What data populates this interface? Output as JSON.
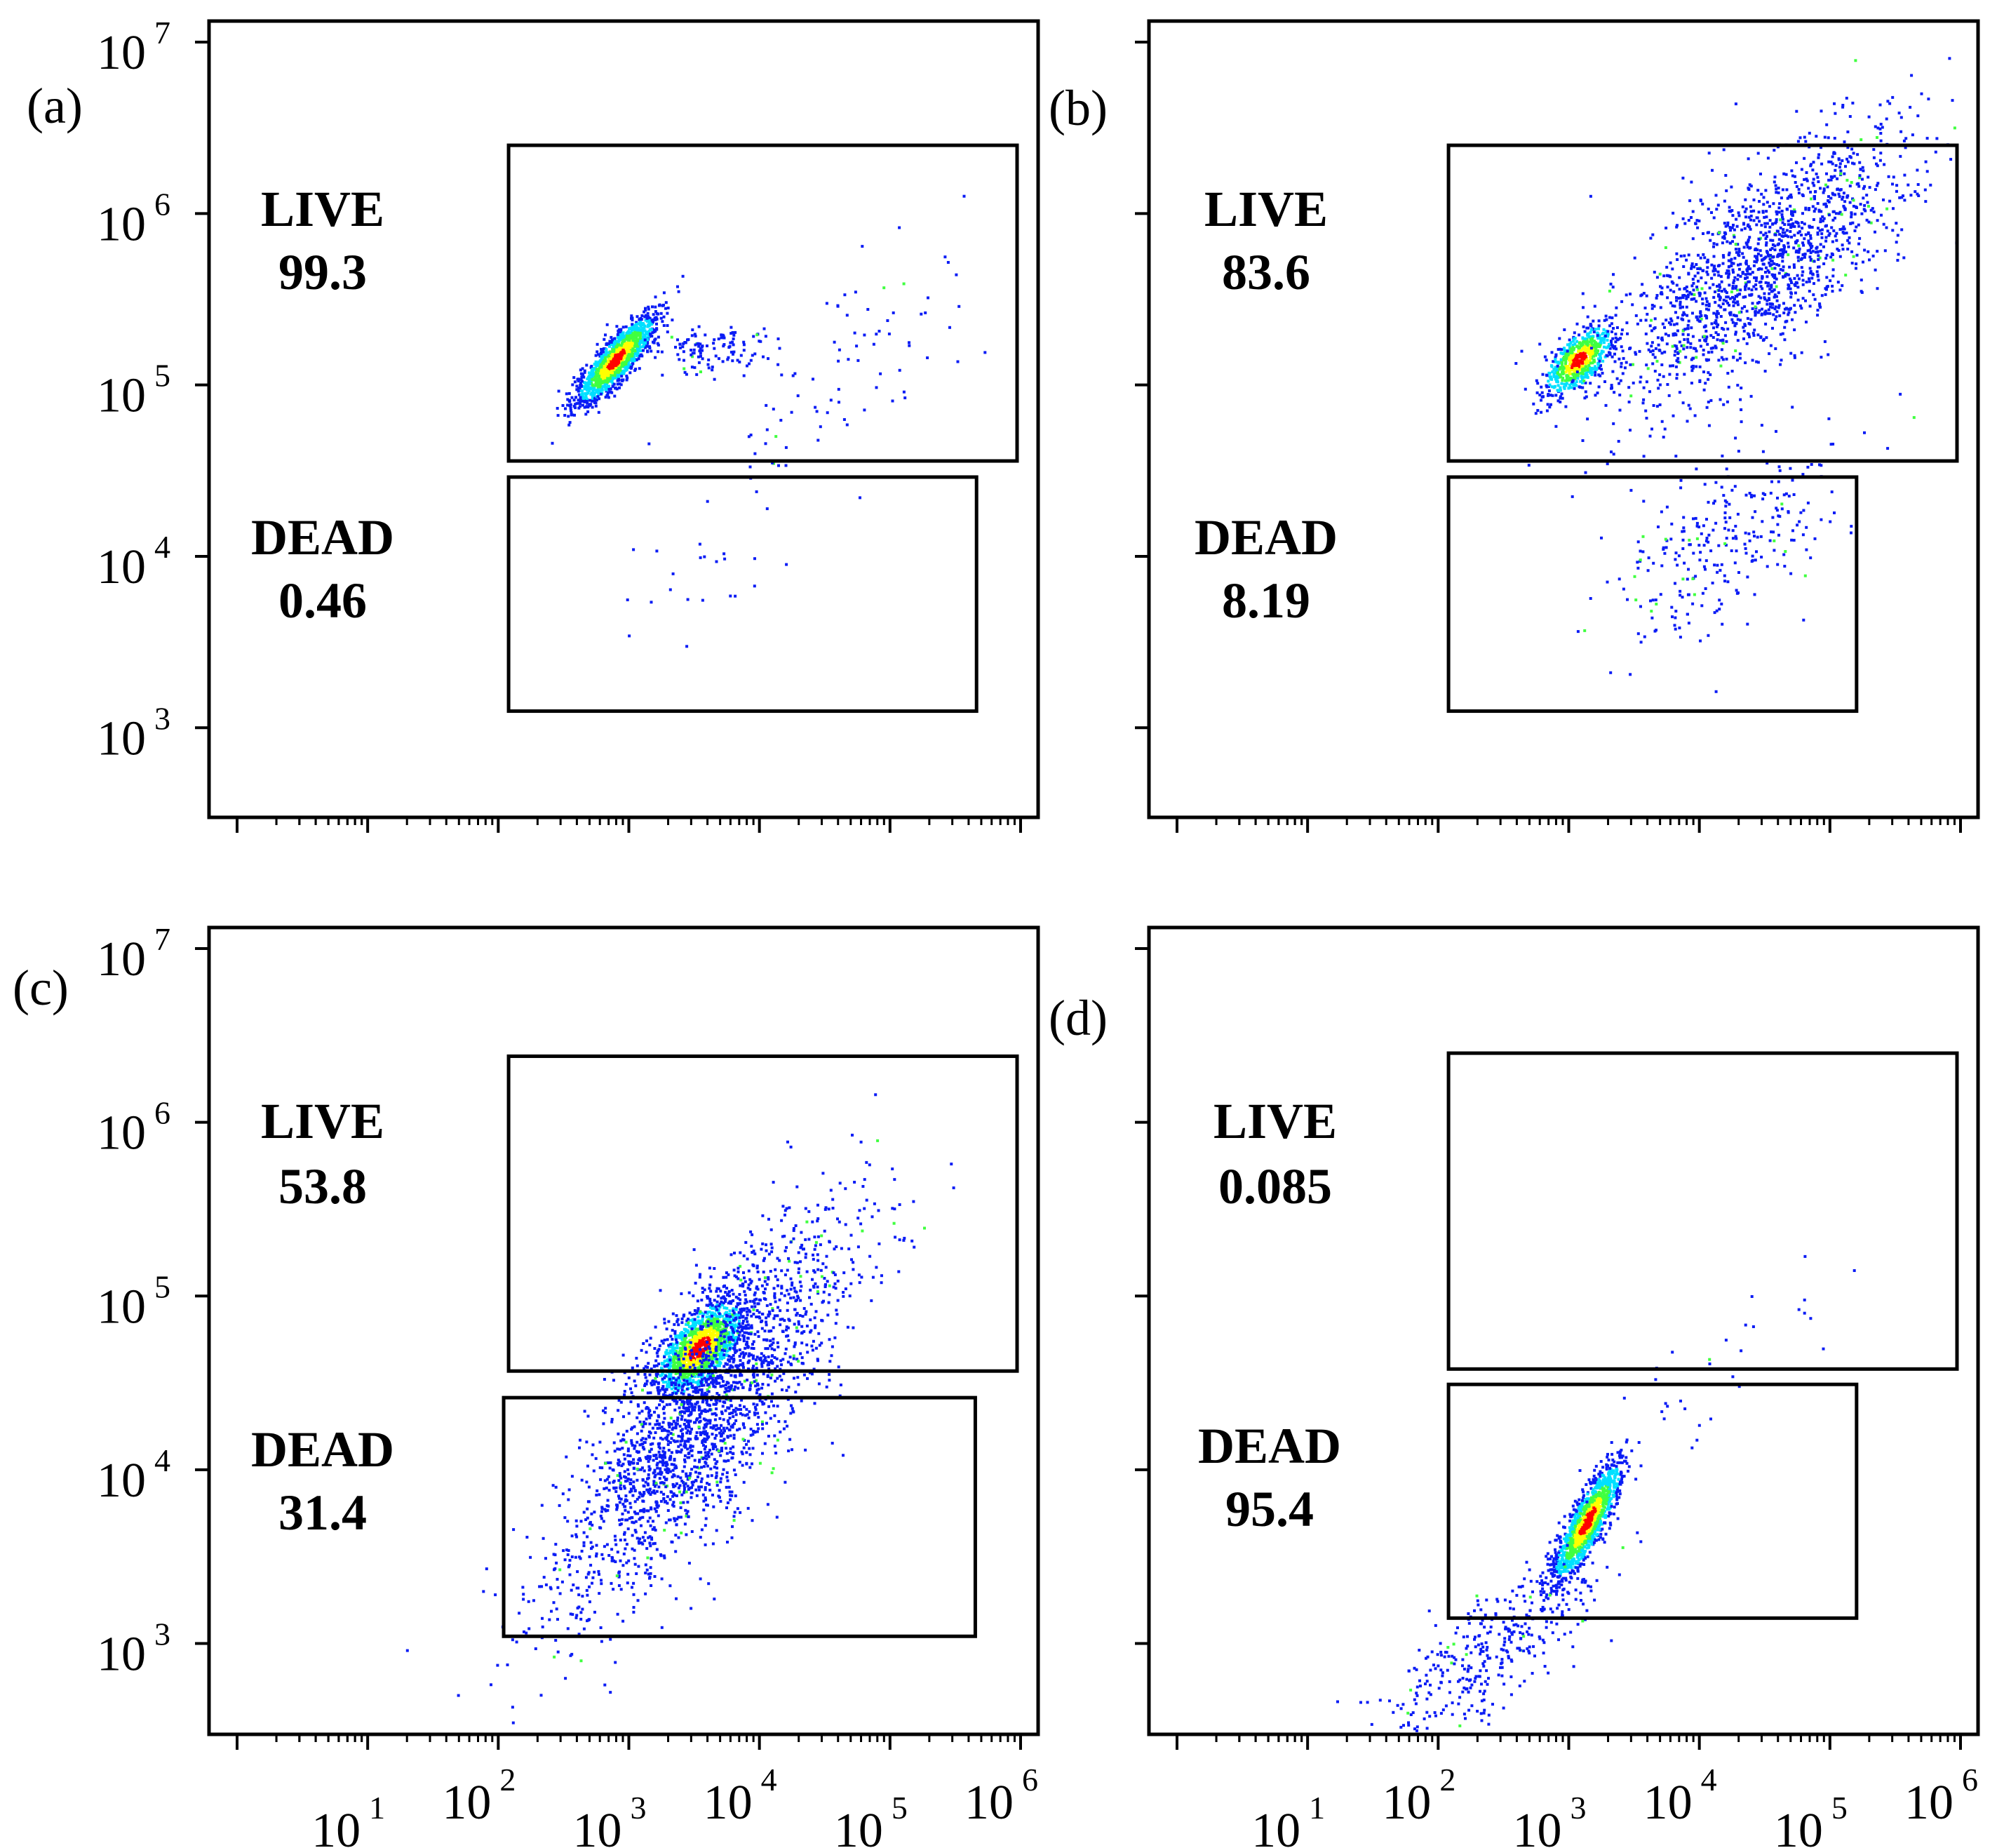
{
  "chart_data": [
    {
      "type": "scatter",
      "panel_label": "(a)",
      "xscale": "log",
      "yscale": "log",
      "xlim": [
        1,
        1000000
      ],
      "ylim": [
        300,
        10000000
      ],
      "x_tick_labels": [],
      "y_tick_labels": [
        {
          "base": "10",
          "exp": "3"
        },
        {
          "base": "10",
          "exp": "4"
        },
        {
          "base": "10",
          "exp": "5"
        },
        {
          "base": "10",
          "exp": "6"
        },
        {
          "base": "10",
          "exp": "7"
        }
      ],
      "gates": [
        {
          "name": "LIVE",
          "value": "99.3",
          "x_range": [
            120,
            1200000
          ],
          "y_range": [
            36000,
            2500000
          ]
        },
        {
          "name": "DEAD",
          "value": "0.46",
          "x_range": [
            120,
            460000
          ],
          "y_range": [
            1250,
            29000
          ]
        }
      ],
      "populations": [
        {
          "center": [
            800,
            140000
          ],
          "spread": [
            0.15,
            0.13
          ],
          "rho": 0.85,
          "count": 1500,
          "density": "high"
        },
        {
          "center": [
            4000,
            160000
          ],
          "spread": [
            0.22,
            0.07
          ],
          "rho": 0.1,
          "count": 120,
          "density": "low"
        },
        {
          "center": [
            60000,
            120000
          ],
          "spread": [
            0.5,
            0.4
          ],
          "rho": 0.6,
          "count": 80,
          "density": "low"
        },
        {
          "center": [
            3000,
            10000
          ],
          "spread": [
            0.45,
            0.35
          ],
          "rho": 0.6,
          "count": 25,
          "density": "low"
        }
      ]
    },
    {
      "type": "scatter",
      "panel_label": "(b)",
      "xscale": "log",
      "yscale": "log",
      "xlim": [
        1,
        1000000
      ],
      "ylim": [
        300,
        10000000
      ],
      "x_tick_labels": [],
      "y_tick_labels": [],
      "gates": [
        {
          "name": "LIVE",
          "value": "83.6",
          "x_range": [
            120,
            1000000
          ],
          "y_range": [
            36000,
            2500000
          ]
        },
        {
          "name": "DEAD",
          "value": "8.19",
          "x_range": [
            120,
            160000
          ],
          "y_range": [
            1250,
            29000
          ]
        }
      ],
      "populations": [
        {
          "center": [
            1200,
            140000
          ],
          "spread": [
            0.13,
            0.1
          ],
          "rho": 0.6,
          "count": 700,
          "density": "high"
        },
        {
          "center": [
            30000,
            500000
          ],
          "spread": [
            0.55,
            0.4
          ],
          "rho": 0.7,
          "count": 1600,
          "density": "low"
        },
        {
          "center": [
            15000,
            12000
          ],
          "spread": [
            0.45,
            0.3
          ],
          "rho": 0.6,
          "count": 280,
          "density": "low"
        }
      ]
    },
    {
      "type": "scatter",
      "panel_label": "(c)",
      "xscale": "log",
      "yscale": "log",
      "xlim": [
        1,
        1000000
      ],
      "ylim": [
        300,
        10000000
      ],
      "x_tick_labels": [
        {
          "base": "10",
          "exp": "1"
        },
        {
          "base": "10",
          "exp": "2"
        },
        {
          "base": "10",
          "exp": "3"
        },
        {
          "base": "10",
          "exp": "4"
        },
        {
          "base": "10",
          "exp": "5"
        },
        {
          "base": "10",
          "exp": "6"
        }
      ],
      "y_tick_labels": [
        {
          "base": "10",
          "exp": "3"
        },
        {
          "base": "10",
          "exp": "4"
        },
        {
          "base": "10",
          "exp": "5"
        },
        {
          "base": "10",
          "exp": "6"
        },
        {
          "base": "10",
          "exp": "7"
        }
      ],
      "gates": [
        {
          "name": "LIVE",
          "value": "53.8",
          "x_range": [
            120,
            1200000
          ],
          "y_range": [
            37000,
            2400000
          ]
        },
        {
          "name": "DEAD",
          "value": "31.4",
          "x_range": [
            110,
            450000
          ],
          "y_range": [
            1100,
            26000
          ]
        }
      ],
      "populations": [
        {
          "center": [
            3500,
            50000
          ],
          "spread": [
            0.17,
            0.14
          ],
          "rho": 0.6,
          "count": 1400,
          "density": "high"
        },
        {
          "center": [
            3500,
            20000
          ],
          "spread": [
            0.55,
            0.55
          ],
          "rho": 0.8,
          "count": 2200,
          "density": "low"
        }
      ]
    },
    {
      "type": "scatter",
      "panel_label": "(d)",
      "xscale": "log",
      "yscale": "log",
      "xlim": [
        1,
        1000000
      ],
      "ylim": [
        300,
        10000000
      ],
      "x_tick_labels": [
        {
          "base": "10",
          "exp": "1"
        },
        {
          "base": "10",
          "exp": "2"
        },
        {
          "base": "10",
          "exp": "3"
        },
        {
          "base": "10",
          "exp": "4"
        },
        {
          "base": "10",
          "exp": "5"
        },
        {
          "base": "10",
          "exp": "6"
        }
      ],
      "y_tick_labels": [],
      "gates": [
        {
          "name": "LIVE",
          "value": "0.085",
          "x_range": [
            120,
            1000000
          ],
          "y_range": [
            38000,
            2500000
          ]
        },
        {
          "name": "DEAD",
          "value": "95.4",
          "x_range": [
            120,
            160000
          ],
          "y_range": [
            1400,
            31000
          ]
        }
      ],
      "populations": [
        {
          "center": [
            1400,
            5000
          ],
          "spread": [
            0.13,
            0.17
          ],
          "rho": 0.85,
          "count": 1400,
          "density": "high"
        },
        {
          "center": [
            250,
            900
          ],
          "spread": [
            0.45,
            0.3
          ],
          "rho": 0.8,
          "count": 400,
          "density": "low"
        },
        {
          "center": [
            15000,
            40000
          ],
          "spread": [
            0.45,
            0.25
          ],
          "rho": 0.7,
          "count": 30,
          "density": "low"
        }
      ]
    }
  ],
  "colors": {
    "density_low": "#0a1cf5",
    "density_mid": "#00e0ff",
    "density_mid2": "#40ff40",
    "density_high": "#ffff00",
    "density_peak": "#ff0000"
  }
}
